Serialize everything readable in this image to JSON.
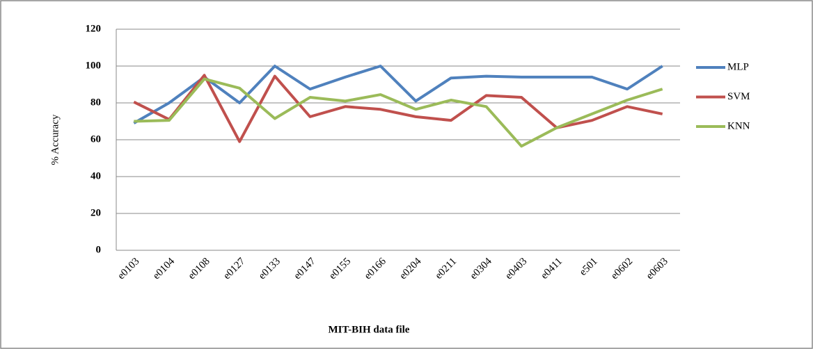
{
  "chart_data": {
    "type": "line",
    "x_label": "MIT-BIH data file",
    "y_label": "% Accuracy",
    "categories": [
      "e0103",
      "e0104",
      "e0108",
      "e0127",
      "e0133",
      "e0147",
      "e0155",
      "e0166",
      "e0204",
      "e0211",
      "e0304",
      "e0403",
      "e0411",
      "e501",
      "e0602",
      "e0603"
    ],
    "series": [
      {
        "name": "MLP",
        "color": "#4f81bd",
        "values": [
          69,
          80,
          94,
          80,
          100,
          87.5,
          94,
          100,
          81,
          93.5,
          94.5,
          94,
          94,
          94,
          87.5,
          100
        ]
      },
      {
        "name": "SVM",
        "color": "#c0504d",
        "values": [
          80.5,
          71,
          95,
          59,
          94.5,
          72.5,
          78,
          76.5,
          72.5,
          70.5,
          84,
          83,
          66.5,
          70.5,
          78,
          74
        ]
      },
      {
        "name": "KNN",
        "color": "#9bbb59",
        "values": [
          70,
          70.5,
          93,
          88,
          71.5,
          83,
          81,
          84.5,
          76.5,
          81.5,
          78,
          56.5,
          66.5,
          74,
          81.5,
          87.5
        ]
      }
    ],
    "ylim": [
      0,
      120
    ],
    "yticks": [
      0,
      20,
      40,
      60,
      80,
      100,
      120
    ],
    "grid": true,
    "legend": "right"
  }
}
